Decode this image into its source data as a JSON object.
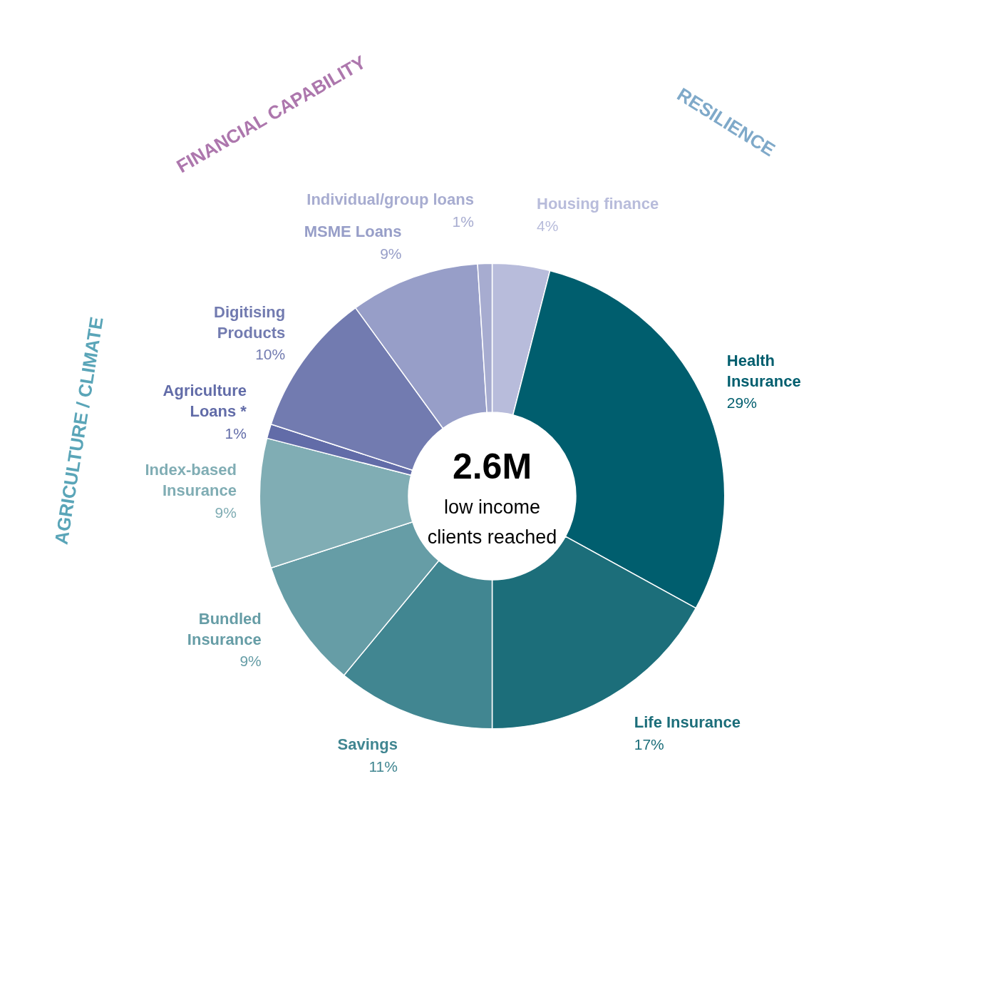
{
  "chart_data": {
    "type": "donut",
    "title": "2.6M",
    "subtitle": "low income clients reached",
    "categories": [
      "Housing finance",
      "Health Insurance",
      "Life Insurance",
      "Savings",
      "Bundled Insurance",
      "Index-based Insurance",
      "Agriculture Loans *",
      "Digitising Products",
      "MSME Loans",
      "Individual/group loans"
    ],
    "values": [
      4,
      29,
      17,
      11,
      9,
      9,
      1,
      10,
      9,
      1
    ],
    "value_labels": [
      "4%",
      "29%",
      "17%",
      "11%",
      "9%",
      "9%",
      "1%",
      "10%",
      "9%",
      "1%"
    ],
    "colors": [
      "#b8bcdb",
      "#005e6e",
      "#1c6e7a",
      "#418691",
      "#669da6",
      "#80adb4",
      "#626ca8",
      "#727bb0",
      "#979ec8",
      "#a7acd0"
    ],
    "annotations": [
      "RESILIENCE",
      "FINANCIAL CAPABILITY",
      "AGRICULTURE / CLIMATE"
    ]
  }
}
